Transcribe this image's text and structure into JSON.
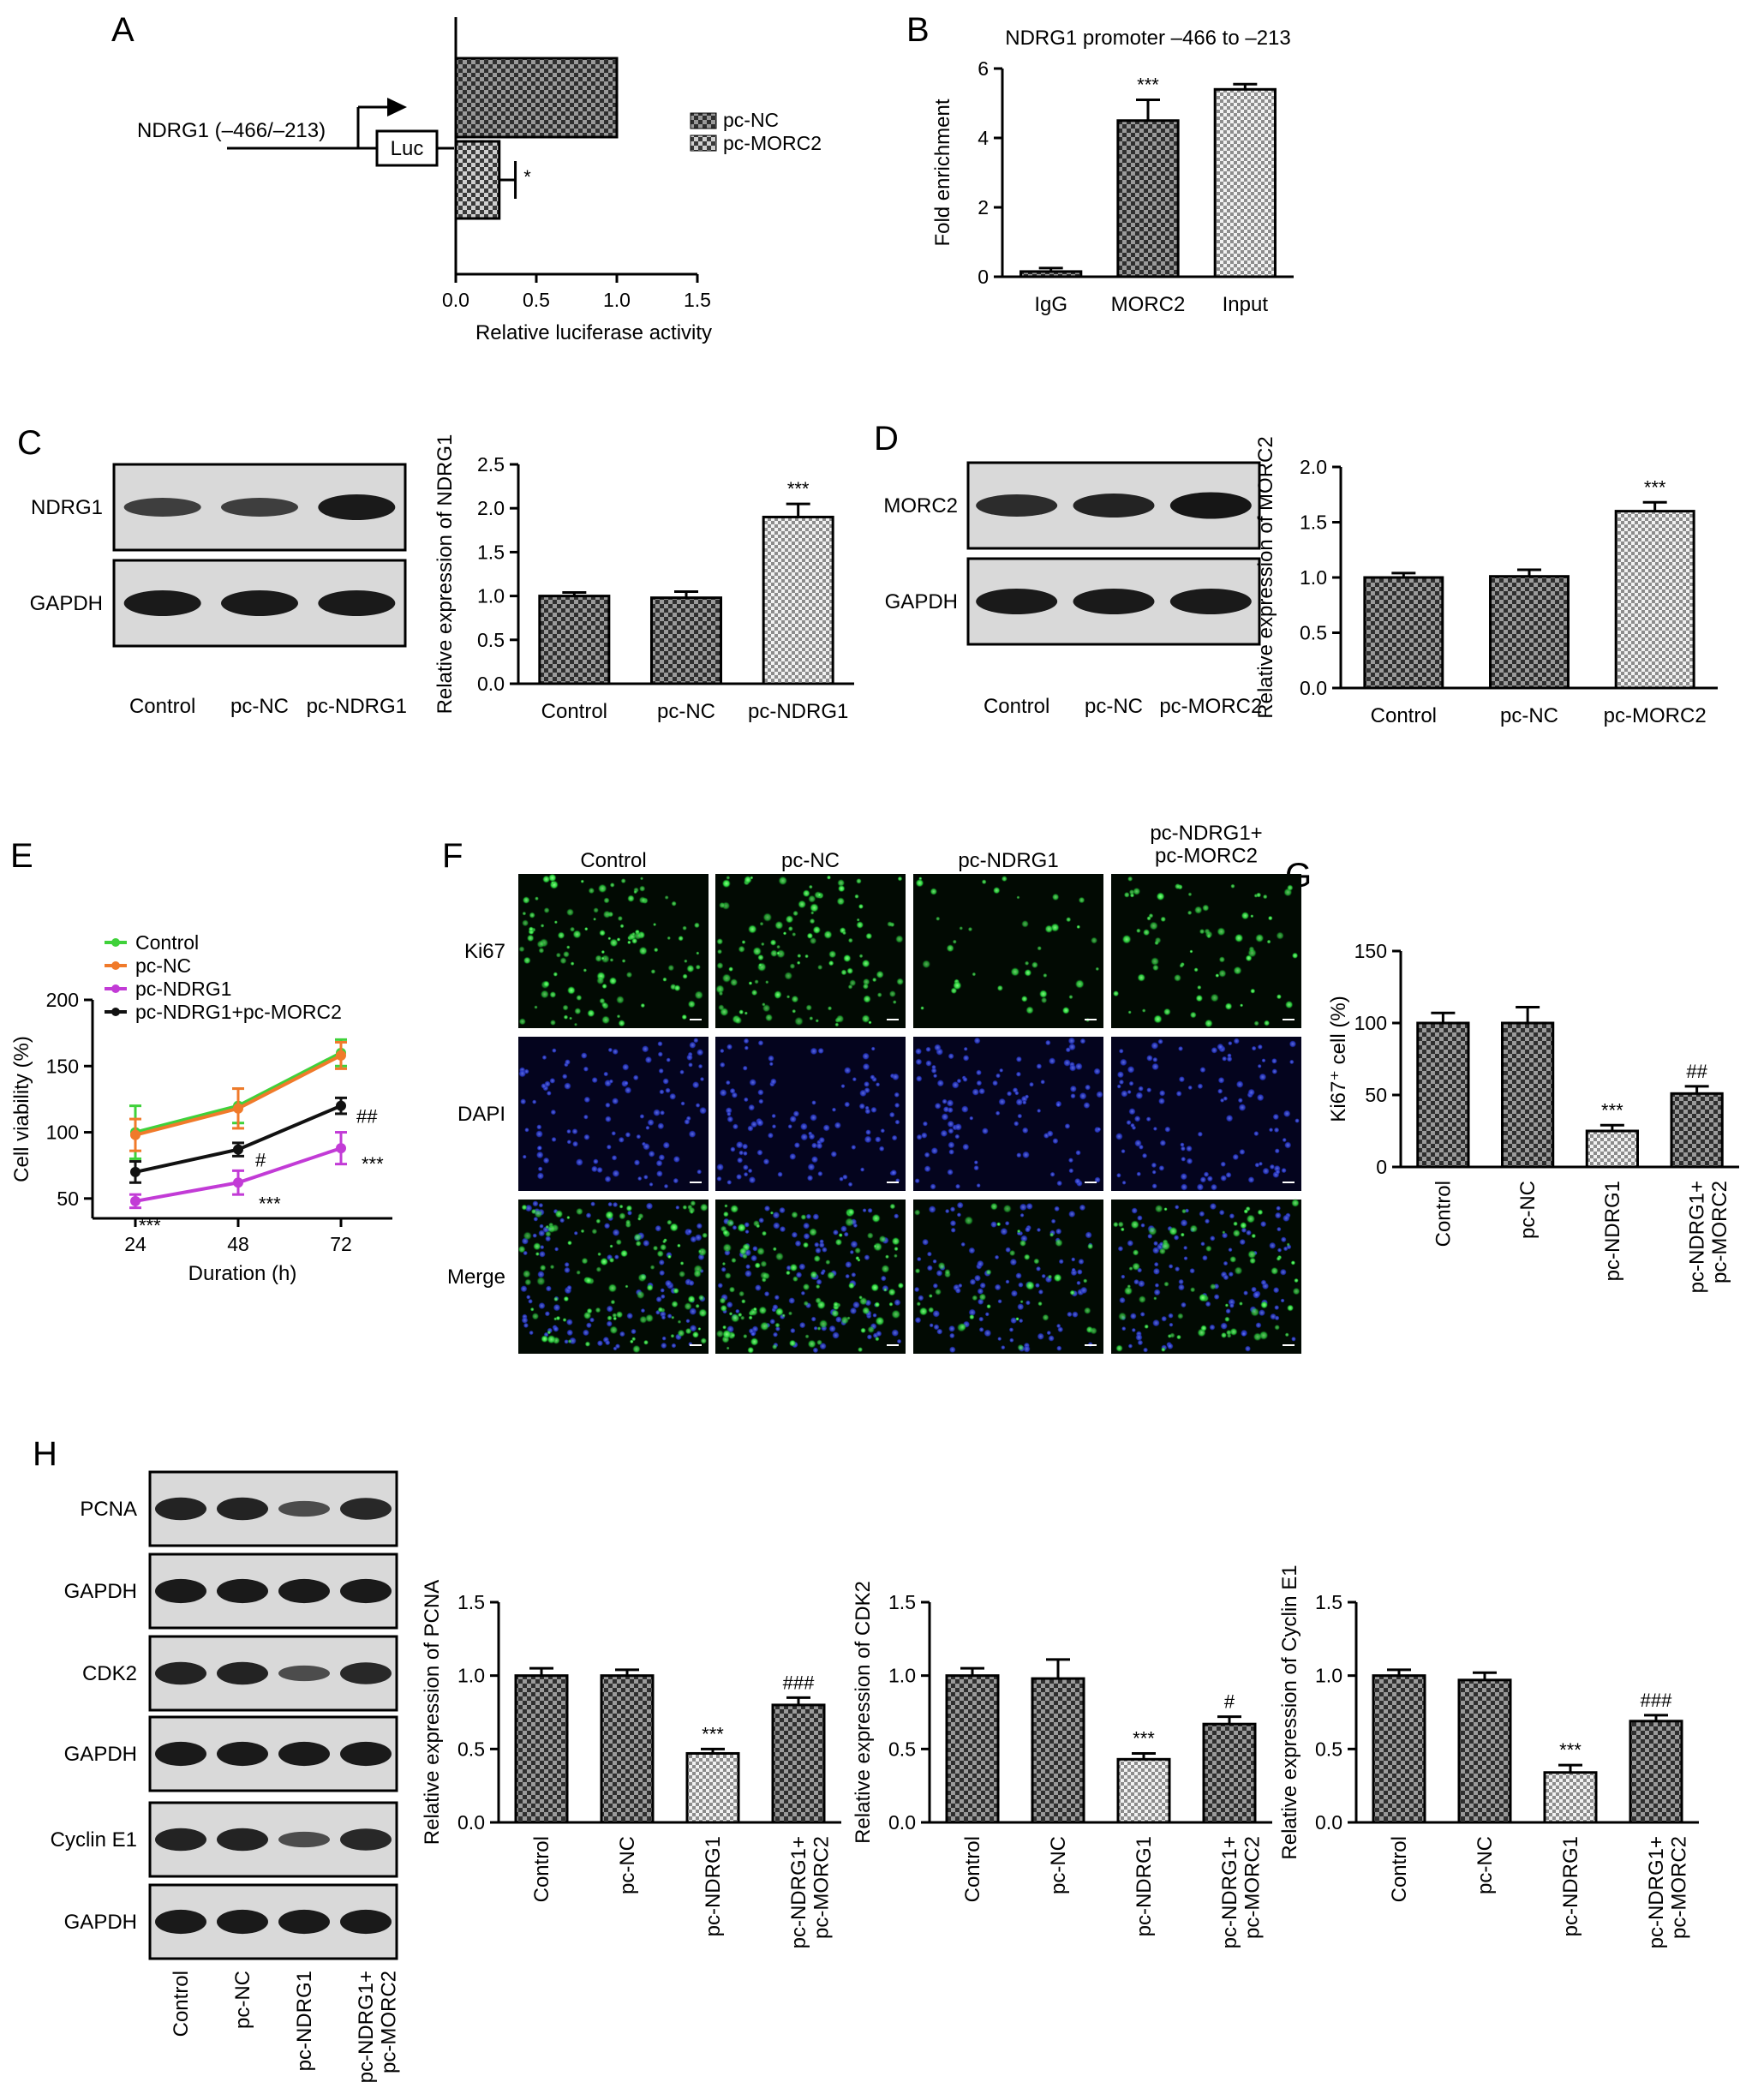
{
  "panels": {
    "A": {
      "letter": "A",
      "construct_label": "NDRG1 (–466/–213)",
      "luc_label": "Luc",
      "legend": [
        "pc-NC",
        "pc-MORC2"
      ],
      "chart_data": {
        "type": "bar",
        "orientation": "horizontal",
        "categories": [
          "pc-NC",
          "pc-MORC2"
        ],
        "values": [
          1.0,
          0.27
        ],
        "errors": [
          0.0,
          0.07
        ],
        "sig": [
          "",
          "*"
        ],
        "xlabel": "Relative luciferase activity",
        "xlim": [
          0,
          1.5
        ],
        "ticks": [
          "0.0",
          "0.5",
          "1.0",
          "1.5"
        ]
      }
    },
    "B": {
      "letter": "B",
      "chart_data": {
        "type": "bar",
        "title": "NDRG1 promoter –466 to –213",
        "categories": [
          "IgG",
          "MORC2",
          "Input"
        ],
        "values": [
          0.15,
          4.5,
          5.4
        ],
        "errors": [
          0.1,
          0.6,
          0.15
        ],
        "sig": [
          "",
          "***",
          ""
        ],
        "ylabel": "Fold enrichment",
        "ylim": [
          0,
          6
        ],
        "ticks": [
          "0",
          "2",
          "4",
          "6"
        ]
      }
    },
    "C": {
      "letter": "C",
      "blot_rows": [
        "NDRG1",
        "GAPDH"
      ],
      "blot_lanes": [
        "Control",
        "pc-NC",
        "pc-NDRG1"
      ],
      "chart_data": {
        "type": "bar",
        "categories": [
          "Control",
          "pc-NC",
          "pc-NDRG1"
        ],
        "values": [
          1.0,
          0.98,
          1.9
        ],
        "errors": [
          0.04,
          0.07,
          0.15
        ],
        "sig": [
          "",
          "",
          "***"
        ],
        "ylabel": "Relative expression of NDRG1",
        "ylim": [
          0,
          2.5
        ],
        "ticks": [
          "0.0",
          "0.5",
          "1.0",
          "1.5",
          "2.0",
          "2.5"
        ]
      }
    },
    "D": {
      "letter": "D",
      "blot_rows": [
        "MORC2",
        "GAPDH"
      ],
      "blot_lanes": [
        "Control",
        "pc-NC",
        "pc-MORC2"
      ],
      "chart_data": {
        "type": "bar",
        "categories": [
          "Control",
          "pc-NC",
          "pc-MORC2"
        ],
        "values": [
          1.0,
          1.01,
          1.6
        ],
        "errors": [
          0.04,
          0.06,
          0.08
        ],
        "sig": [
          "",
          "",
          "***"
        ],
        "ylabel": "Relative expression of MORC2",
        "ylim": [
          0,
          2.0
        ],
        "ticks": [
          "0.0",
          "0.5",
          "1.0",
          "1.5",
          "2.0"
        ]
      }
    },
    "E": {
      "letter": "E",
      "chart_data": {
        "type": "line",
        "x": [
          24,
          48,
          72
        ],
        "series": [
          {
            "name": "Control",
            "color": "#3fd13a",
            "values": [
              100,
              120,
              160
            ],
            "errors": [
              20,
              13,
              10
            ],
            "marks": [
              "",
              "",
              ""
            ]
          },
          {
            "name": "pc-NC",
            "color": "#f07a2a",
            "values": [
              98,
              118,
              158
            ],
            "errors": [
              12,
              15,
              10
            ],
            "marks": [
              "",
              "",
              ""
            ]
          },
          {
            "name": "pc-NDRG1",
            "color": "#c23bd6",
            "values": [
              48,
              62,
              88
            ],
            "errors": [
              5,
              9,
              12
            ],
            "marks": [
              "***",
              "***",
              "***"
            ]
          },
          {
            "name": "pc-NDRG1+pc-MORC2",
            "color": "#111111",
            "values": [
              70,
              87,
              120
            ],
            "errors": [
              8,
              5,
              6
            ],
            "marks": [
              "",
              "#",
              "##"
            ]
          }
        ],
        "xlabel": "Duration (h)",
        "ylabel": "Cell viability (%)",
        "xlim": [
          14,
          84
        ],
        "ylim": [
          35,
          200
        ],
        "xticks": [
          "24",
          "48",
          "72"
        ],
        "yticks": [
          "50",
          "100",
          "150",
          "200"
        ]
      }
    },
    "F": {
      "letter": "F",
      "columns": [
        "Control",
        "pc-NC",
        "pc-NDRG1",
        "pc-NDRG1+\npc-MORC2"
      ],
      "rows": [
        "Ki67",
        "DAPI",
        "Merge"
      ],
      "ki67_density": [
        1.0,
        1.0,
        0.35,
        0.6
      ]
    },
    "G": {
      "letter": "G",
      "chart_data": {
        "type": "bar",
        "categories": [
          "Control",
          "pc-NC",
          "pc-NDRG1",
          "pc-NDRG1+\npc-MORC2"
        ],
        "values": [
          100,
          100,
          25,
          51
        ],
        "errors": [
          7,
          11,
          4,
          5
        ],
        "sig": [
          "",
          "",
          "***",
          "##"
        ],
        "ylabel": "Ki67⁺ cell (%)",
        "ylim": [
          0,
          150
        ],
        "ticks": [
          "0",
          "50",
          "100",
          "150"
        ]
      }
    },
    "H": {
      "letter": "H",
      "blot_rows": [
        "PCNA",
        "GAPDH",
        "CDK2",
        "GAPDH",
        "Cyclin E1",
        "GAPDH"
      ],
      "blot_lanes": [
        "Control",
        "pc-NC",
        "pc-NDRG1",
        "pc-NDRG1+\npc-MORC2"
      ],
      "charts": [
        {
          "type": "bar",
          "categories": [
            "Control",
            "pc-NC",
            "pc-NDRG1",
            "pc-NDRG1+\npc-MORC2"
          ],
          "values": [
            1.0,
            1.0,
            0.47,
            0.8
          ],
          "errors": [
            0.05,
            0.04,
            0.03,
            0.05
          ],
          "sig": [
            "",
            "",
            "***",
            "###"
          ],
          "ylabel": "Relative expression of PCNA",
          "ylim": [
            0,
            1.5
          ],
          "ticks": [
            "0.0",
            "0.5",
            "1.0",
            "1.5"
          ]
        },
        {
          "type": "bar",
          "categories": [
            "Control",
            "pc-NC",
            "pc-NDRG1",
            "pc-NDRG1+\npc-MORC2"
          ],
          "values": [
            1.0,
            0.98,
            0.43,
            0.67
          ],
          "errors": [
            0.05,
            0.13,
            0.04,
            0.05
          ],
          "sig": [
            "",
            "",
            "***",
            "#"
          ],
          "ylabel": "Relative expression of CDK2",
          "ylim": [
            0,
            1.5
          ],
          "ticks": [
            "0.0",
            "0.5",
            "1.0",
            "1.5"
          ]
        },
        {
          "type": "bar",
          "categories": [
            "Control",
            "pc-NC",
            "pc-NDRG1",
            "pc-NDRG1+\npc-MORC2"
          ],
          "values": [
            1.0,
            0.97,
            0.34,
            0.69
          ],
          "errors": [
            0.04,
            0.05,
            0.05,
            0.04
          ],
          "sig": [
            "",
            "",
            "***",
            "###"
          ],
          "ylabel": "Relative expression of Cyclin E1",
          "ylim": [
            0,
            1.5
          ],
          "ticks": [
            "0.0",
            "0.5",
            "1.0",
            "1.5"
          ]
        }
      ]
    }
  },
  "colors": {
    "checker_dark": "#555555",
    "checker_mid": "#8a8a8a",
    "checker_light": "#c7c7c7",
    "ki67_green": "#29e03a",
    "dapi_blue": "#2a3cd6"
  }
}
